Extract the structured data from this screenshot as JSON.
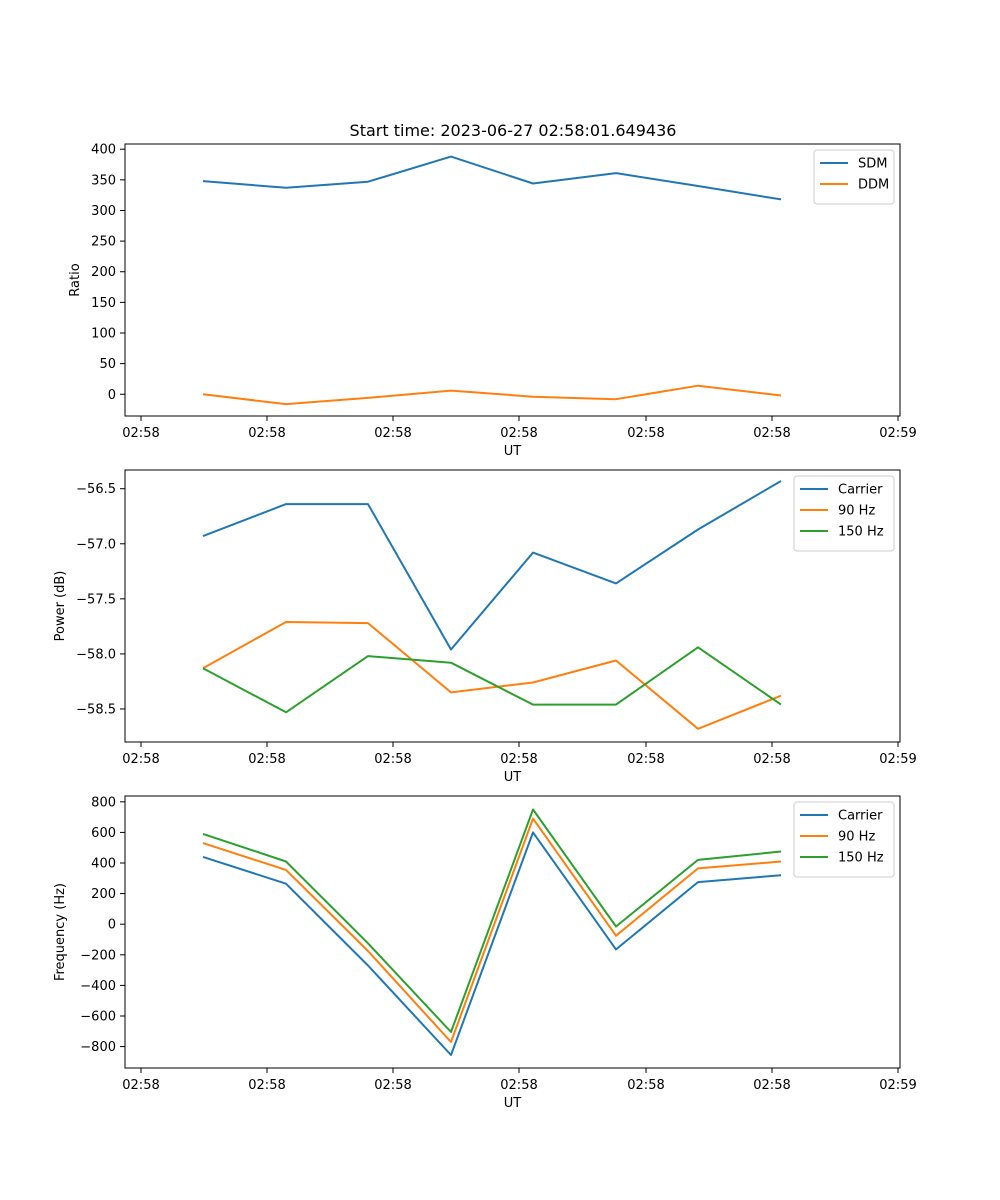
{
  "figure": {
    "title": "Start time: 2023-06-27 02:58:01.649436"
  },
  "colors": {
    "blue": "#1f77b4",
    "orange": "#ff7f0e",
    "green": "#2ca02c"
  },
  "chart_data": [
    {
      "type": "line",
      "xlabel": "UT",
      "ylabel": "Ratio",
      "x_tick_labels": [
        "02:58",
        "02:58",
        "02:58",
        "02:58",
        "02:58",
        "02:58",
        "02:59"
      ],
      "y_ticks": [
        0,
        50,
        100,
        150,
        200,
        250,
        300,
        350,
        400
      ],
      "ylim": [
        -35.5,
        408.5
      ],
      "legend": "top-right",
      "series": [
        {
          "name": "SDM",
          "color": "#1f77b4",
          "values": [
            348,
            337,
            347,
            388,
            344,
            361,
            340,
            318
          ]
        },
        {
          "name": "DDM",
          "color": "#ff7f0e",
          "values": [
            0,
            -16,
            -6,
            6,
            -4,
            -8,
            14,
            -2
          ]
        }
      ]
    },
    {
      "type": "line",
      "xlabel": "UT",
      "ylabel": "Power (dB)",
      "x_tick_labels": [
        "02:58",
        "02:58",
        "02:58",
        "02:58",
        "02:58",
        "02:58",
        "02:59"
      ],
      "y_ticks": [
        -58.5,
        -58.0,
        -57.5,
        -57.0,
        -56.5
      ],
      "y_tick_labels": [
        "−58.5",
        "−58.0",
        "−57.5",
        "−57.0",
        "−56.5"
      ],
      "ylim": [
        -58.8,
        -56.33
      ],
      "legend": "top-right",
      "series": [
        {
          "name": "Carrier",
          "color": "#1f77b4",
          "values": [
            -56.93,
            -56.64,
            -56.64,
            -57.96,
            -57.08,
            -57.36,
            -56.87,
            -56.43
          ]
        },
        {
          "name": "90 Hz",
          "color": "#ff7f0e",
          "values": [
            -58.13,
            -57.71,
            -57.72,
            -58.35,
            -58.26,
            -58.06,
            -58.68,
            -58.38
          ]
        },
        {
          "name": "150 Hz",
          "color": "#2ca02c",
          "values": [
            -58.13,
            -58.53,
            -58.02,
            -58.08,
            -58.46,
            -58.46,
            -57.94,
            -58.46
          ]
        }
      ]
    },
    {
      "type": "line",
      "xlabel": "UT",
      "ylabel": "Frequency (Hz)",
      "x_tick_labels": [
        "02:58",
        "02:58",
        "02:58",
        "02:58",
        "02:58",
        "02:58",
        "02:59"
      ],
      "y_ticks": [
        -800,
        -600,
        -400,
        -200,
        0,
        200,
        400,
        600,
        800
      ],
      "y_tick_labels": [
        "−800",
        "−600",
        "−400",
        "−200",
        "0",
        "200",
        "400",
        "600",
        "800"
      ],
      "ylim": [
        -940,
        838
      ],
      "legend": "top-right",
      "series": [
        {
          "name": "Carrier",
          "color": "#1f77b4",
          "values": [
            440,
            265,
            -270,
            -855,
            600,
            -165,
            275,
            320
          ]
        },
        {
          "name": "90 Hz",
          "color": "#ff7f0e",
          "values": [
            530,
            355,
            -175,
            -770,
            690,
            -75,
            365,
            410
          ]
        },
        {
          "name": "150 Hz",
          "color": "#2ca02c",
          "values": [
            590,
            410,
            -125,
            -705,
            750,
            -15,
            420,
            475
          ]
        }
      ]
    }
  ]
}
